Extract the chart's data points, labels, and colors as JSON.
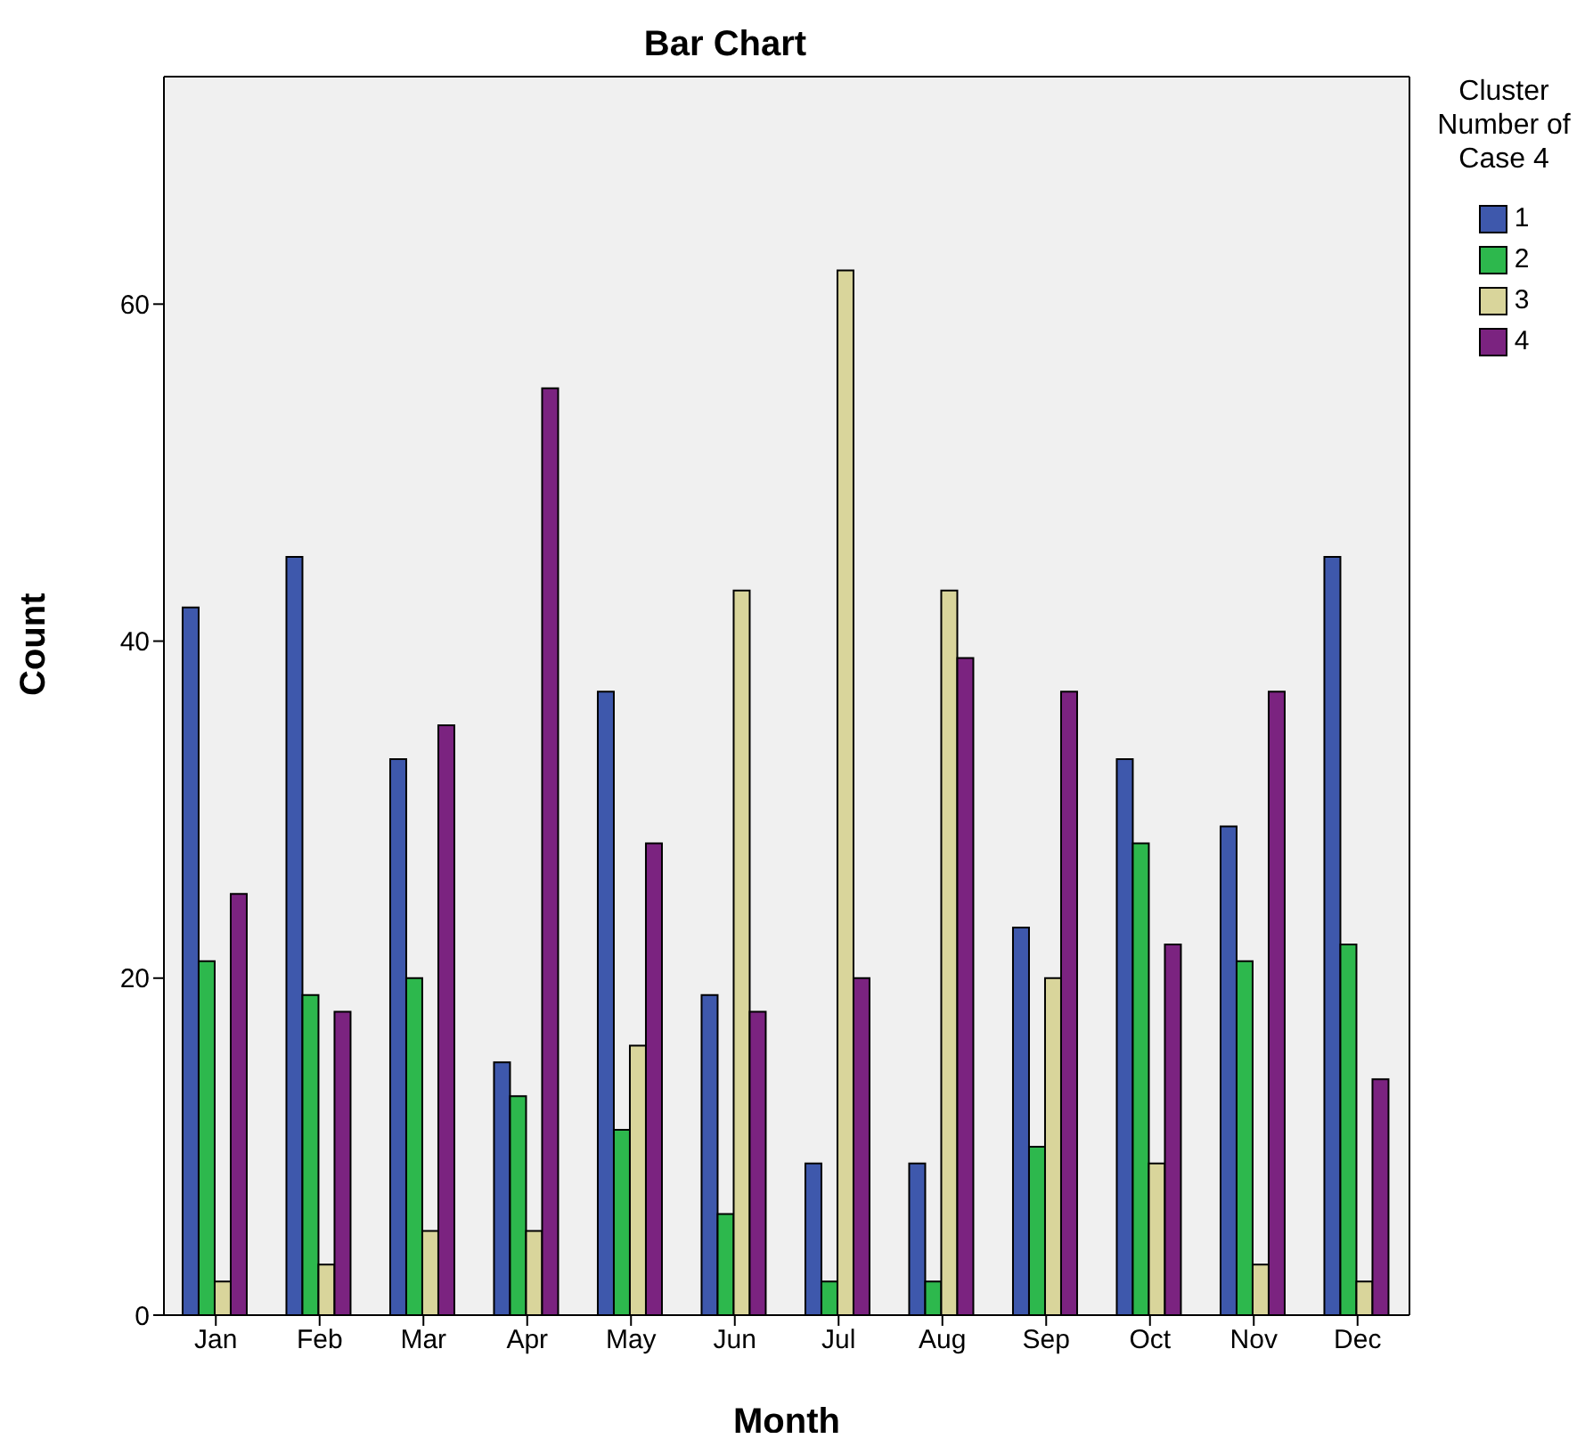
{
  "chart_data": {
    "type": "bar",
    "title": "Bar Chart",
    "xlabel": "Month",
    "ylabel": "Count",
    "legend_title": "Cluster Number of Case 4",
    "categories": [
      "Jan",
      "Feb",
      "Mar",
      "Apr",
      "May",
      "Jun",
      "Jul",
      "Aug",
      "Sep",
      "Oct",
      "Nov",
      "Dec"
    ],
    "series": [
      {
        "name": "1",
        "color": "#3e58ac",
        "values": [
          42,
          45,
          33,
          15,
          37,
          19,
          9,
          9,
          23,
          33,
          29,
          45
        ]
      },
      {
        "name": "2",
        "color": "#2db84d",
        "values": [
          21,
          19,
          20,
          13,
          11,
          6,
          2,
          2,
          10,
          28,
          21,
          22
        ]
      },
      {
        "name": "3",
        "color": "#d9d59b",
        "values": [
          2,
          3,
          5,
          5,
          16,
          43,
          62,
          43,
          20,
          9,
          3,
          2
        ]
      },
      {
        "name": "4",
        "color": "#7b2380",
        "values": [
          25,
          18,
          35,
          55,
          28,
          18,
          20,
          39,
          37,
          22,
          37,
          14
        ]
      }
    ],
    "ylim": [
      0,
      73.5
    ],
    "yticks": [
      0,
      20,
      40,
      60
    ],
    "grid": false,
    "legend": "top right"
  }
}
